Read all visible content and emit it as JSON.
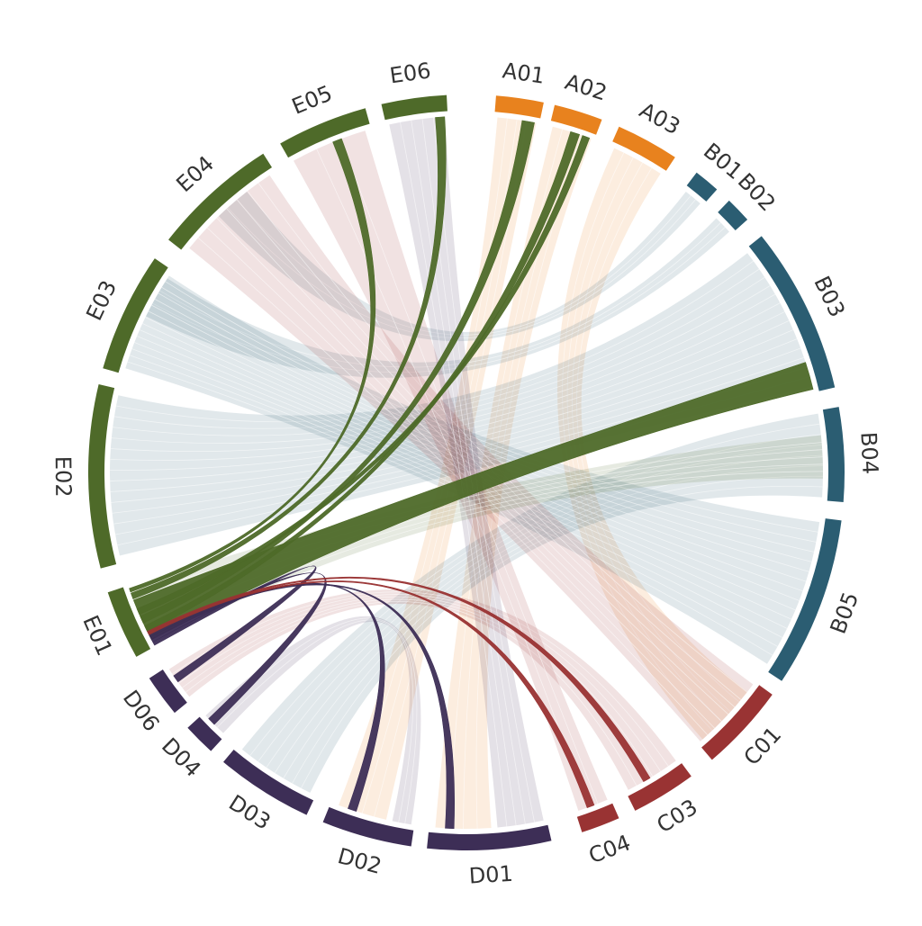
{
  "chart_data": {
    "type": "chord",
    "title": "",
    "groups": [
      {
        "name": "A",
        "color": "#e8821e"
      },
      {
        "name": "B",
        "color": "#2b5d72"
      },
      {
        "name": "C",
        "color": "#993333"
      },
      {
        "name": "D",
        "color": "#3d2e56"
      },
      {
        "name": "E",
        "color": "#4e6a29"
      }
    ],
    "segments": [
      {
        "label": "A01",
        "group": "A",
        "start": 4.5,
        "end": 11.8
      },
      {
        "label": "A02",
        "group": "A",
        "start": 13.5,
        "end": 21.0
      },
      {
        "label": "A03",
        "group": "A",
        "start": 23.8,
        "end": 33.5
      },
      {
        "label": "B01",
        "group": "B",
        "start": 37.5,
        "end": 41.5
      },
      {
        "label": "B02",
        "group": "B",
        "start": 44.0,
        "end": 48.0
      },
      {
        "label": "B03",
        "group": "B",
        "start": 51.3,
        "end": 77.0
      },
      {
        "label": "B04",
        "group": "B",
        "start": 80.0,
        "end": 94.5
      },
      {
        "label": "B05",
        "group": "B",
        "start": 97.3,
        "end": 123.5
      },
      {
        "label": "C01",
        "group": "C",
        "start": 126.0,
        "end": 139.5
      },
      {
        "label": "C03",
        "group": "C",
        "start": 143.5,
        "end": 153.5
      },
      {
        "label": "C04",
        "group": "C",
        "start": 156.2,
        "end": 162.2
      },
      {
        "label": "D01",
        "group": "D",
        "start": 167.0,
        "end": 186.0
      },
      {
        "label": "D02",
        "group": "D",
        "start": 188.4,
        "end": 202.3
      },
      {
        "label": "D03",
        "group": "D",
        "start": 205.0,
        "end": 220.0
      },
      {
        "label": "D04",
        "group": "D",
        "start": 222.5,
        "end": 227.5
      },
      {
        "label": "D06",
        "group": "D",
        "start": 230.5,
        "end": 237.0
      },
      {
        "label": "E01",
        "group": "E",
        "start": 240.8,
        "end": 251.5
      },
      {
        "label": "E02",
        "group": "E",
        "start": 255.3,
        "end": 283.5
      },
      {
        "label": "E03",
        "group": "E",
        "start": 286.0,
        "end": 304.5
      },
      {
        "label": "E04",
        "group": "E",
        "start": 308.0,
        "end": 327.5
      },
      {
        "label": "E05",
        "group": "E",
        "start": 330.5,
        "end": 344.5
      },
      {
        "label": "E06",
        "group": "E",
        "start": 347.0,
        "end": 357.0
      }
    ],
    "links": [
      {
        "source": "A01",
        "s_start": 5.0,
        "s_end": 11.3,
        "target": "D02",
        "t_start": 193.0,
        "t_end": 201.0
      },
      {
        "source": "A02",
        "s_start": 14.0,
        "s_end": 20.5,
        "target": "D01",
        "t_start": 176.0,
        "t_end": 185.0
      },
      {
        "source": "A03",
        "s_start": 24.5,
        "s_end": 33.0,
        "target": "C01",
        "t_start": 128.0,
        "t_end": 138.5
      },
      {
        "source": "B01",
        "s_start": 38.0,
        "s_end": 41.0,
        "target": "E04",
        "t_start": 316.0,
        "t_end": 322.0
      },
      {
        "source": "B02",
        "s_start": 44.5,
        "s_end": 47.5,
        "target": "E03",
        "t_start": 296.0,
        "t_end": 303.0
      },
      {
        "source": "B03",
        "s_start": 52.0,
        "s_end": 76.0,
        "target": "E02",
        "t_start": 256.5,
        "t_end": 282.5
      },
      {
        "source": "B04",
        "s_start": 80.5,
        "s_end": 94.0,
        "target": "D03",
        "t_start": 206.0,
        "t_end": 219.0
      },
      {
        "source": "B05",
        "s_start": 98.0,
        "s_end": 122.5,
        "target": "E03",
        "t_start": 287.0,
        "t_end": 303.5
      },
      {
        "source": "C01",
        "s_start": 126.5,
        "s_end": 139.0,
        "target": "E04",
        "t_start": 309.0,
        "t_end": 326.5
      },
      {
        "source": "C03",
        "s_start": 144.0,
        "s_end": 153.0,
        "target": "D06",
        "t_start": 231.0,
        "t_end": 236.5
      },
      {
        "source": "C04",
        "s_start": 156.7,
        "s_end": 161.7,
        "target": "E05",
        "t_start": 331.0,
        "t_end": 343.5
      },
      {
        "source": "D01",
        "s_start": 167.5,
        "s_end": 175.0,
        "target": "E06",
        "t_start": 347.5,
        "t_end": 356.5
      },
      {
        "source": "D02",
        "s_start": 188.9,
        "s_end": 192.0,
        "target": "D04",
        "t_start": 223.0,
        "t_end": 227.0
      },
      {
        "source": "E01",
        "s_start": 241.3,
        "s_end": 251.0,
        "target": "B04",
        "t_start": 84.0,
        "t_end": 91.0
      }
    ],
    "highlighted": [
      {
        "source": "E01",
        "s_start": 242.0,
        "s_end": 249.0,
        "target": "B03",
        "t_start": 72.0,
        "t_end": 76.5
      },
      {
        "source": "E01",
        "s_start": 245.0,
        "s_end": 246.2,
        "target": "A01",
        "t_start": 9.0,
        "t_end": 11.0
      },
      {
        "source": "E01",
        "s_start": 243.5,
        "s_end": 244.5,
        "target": "A02",
        "t_start": 17.0,
        "t_end": 18.5
      },
      {
        "source": "E01",
        "s_start": 246.5,
        "s_end": 247.5,
        "target": "A02",
        "t_start": 19.0,
        "t_end": 20.2
      },
      {
        "source": "E01",
        "s_start": 249.2,
        "s_end": 250.2,
        "target": "E06",
        "t_start": 355.0,
        "t_end": 356.5
      },
      {
        "source": "E01",
        "s_start": 250.4,
        "s_end": 251.0,
        "target": "E05",
        "t_start": 338.0,
        "t_end": 339.5
      },
      {
        "source": "D06",
        "s_start": 234.0,
        "s_end": 235.2,
        "target": "E01",
        "t_start": 241.0,
        "t_end": 241.6
      },
      {
        "source": "D04",
        "s_start": 225.0,
        "s_end": 226.3,
        "target": "E01",
        "t_start": 241.6,
        "t_end": 242.1
      },
      {
        "source": "D02",
        "s_start": 198.0,
        "s_end": 199.4,
        "target": "E01",
        "t_start": 242.1,
        "t_end": 242.5
      },
      {
        "source": "D01",
        "s_start": 182.0,
        "s_end": 183.4,
        "target": "E01",
        "t_start": 242.5,
        "t_end": 242.9
      },
      {
        "source": "C04",
        "s_start": 159.0,
        "s_end": 160.2,
        "target": "E01",
        "t_start": 242.9,
        "t_end": 243.2
      },
      {
        "source": "C03",
        "s_start": 149.0,
        "s_end": 150.2,
        "target": "E01",
        "t_start": 243.2,
        "t_end": 243.5
      }
    ]
  }
}
